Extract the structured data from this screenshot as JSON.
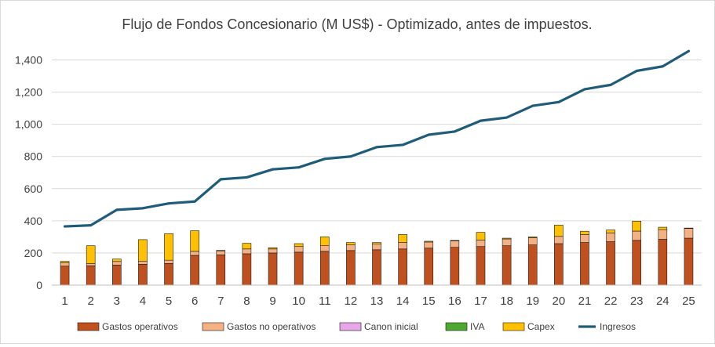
{
  "chart_data": {
    "type": "bar",
    "title": "Flujo de Fondos Concesionario (M US$) - Optimizado, antes de impuestos.",
    "xlabel": "",
    "ylabel": "",
    "ylim": [
      0,
      1500
    ],
    "yticks": [
      0,
      200,
      400,
      600,
      800,
      1000,
      1200,
      1400
    ],
    "ytick_labels": [
      "0",
      "200",
      "400",
      "600",
      "800",
      "1,000",
      "1,200",
      "1,400"
    ],
    "grid": true,
    "legend_position": "bottom",
    "categories": [
      "1",
      "2",
      "3",
      "4",
      "5",
      "6",
      "7",
      "8",
      "9",
      "10",
      "11",
      "12",
      "13",
      "14",
      "15",
      "16",
      "17",
      "18",
      "19",
      "20",
      "21",
      "22",
      "23",
      "24",
      "25"
    ],
    "series": [
      {
        "name": "Gastos operativos",
        "kind": "stacked-bar",
        "color": "#c0501e",
        "values": [
          118,
          120,
          125,
          130,
          135,
          185,
          188,
          195,
          200,
          205,
          210,
          215,
          220,
          225,
          230,
          235,
          240,
          245,
          250,
          258,
          265,
          270,
          278,
          285,
          292
        ]
      },
      {
        "name": "Gastos no operativos",
        "kind": "stacked-bar",
        "color": "#f4b183",
        "values": [
          20,
          15,
          22,
          18,
          20,
          25,
          25,
          30,
          25,
          35,
          35,
          35,
          35,
          40,
          38,
          40,
          40,
          42,
          45,
          45,
          50,
          55,
          58,
          60,
          60
        ]
      },
      {
        "name": "Canon inicial",
        "kind": "stacked-bar",
        "color": "#e8a7e8",
        "values": [
          0,
          0,
          0,
          0,
          0,
          0,
          0,
          0,
          0,
          0,
          0,
          0,
          0,
          0,
          0,
          0,
          0,
          0,
          0,
          0,
          0,
          0,
          0,
          0,
          0
        ]
      },
      {
        "name": "IVA",
        "kind": "stacked-bar",
        "color": "#4ea72e",
        "values": [
          0,
          0,
          0,
          0,
          0,
          0,
          0,
          0,
          0,
          0,
          0,
          0,
          0,
          0,
          0,
          0,
          0,
          0,
          0,
          0,
          0,
          0,
          0,
          0,
          0
        ]
      },
      {
        "name": "Capex",
        "kind": "stacked-bar",
        "color": "#ffc000",
        "values": [
          10,
          110,
          15,
          135,
          165,
          128,
          3,
          35,
          8,
          18,
          55,
          15,
          10,
          50,
          5,
          3,
          48,
          5,
          5,
          70,
          20,
          18,
          62,
          15,
          3
        ]
      },
      {
        "name": "Ingresos",
        "kind": "line",
        "color": "#1f5c7a",
        "values": [
          365,
          372,
          468,
          478,
          508,
          520,
          658,
          670,
          720,
          732,
          785,
          800,
          858,
          872,
          935,
          955,
          1022,
          1042,
          1115,
          1138,
          1218,
          1245,
          1332,
          1360,
          1455
        ]
      }
    ]
  }
}
